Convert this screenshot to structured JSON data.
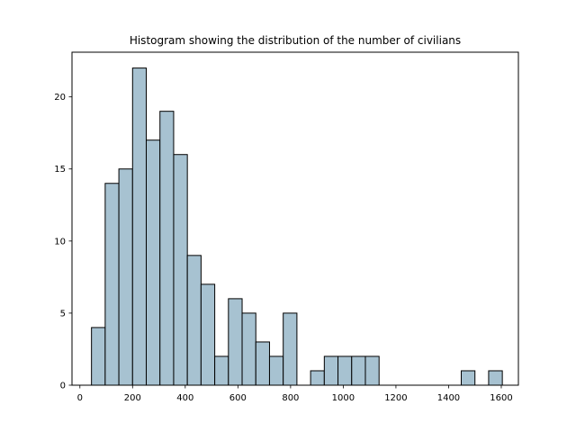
{
  "chart_data": {
    "type": "bar",
    "subtype": "histogram",
    "title": "Histogram showing the distribution of the number of civilians",
    "xlabel": "",
    "ylabel": "",
    "bin_edges": [
      44,
      96,
      148,
      200,
      252,
      304,
      356,
      408,
      460,
      512,
      564,
      616,
      668,
      720,
      772,
      824,
      876,
      928,
      980,
      1032,
      1084,
      1136,
      1188,
      1240,
      1292,
      1344,
      1396,
      1448,
      1500,
      1552,
      1604
    ],
    "values": [
      4,
      14,
      15,
      22,
      17,
      19,
      16,
      9,
      7,
      2,
      6,
      5,
      3,
      2,
      5,
      0,
      1,
      2,
      2,
      2,
      2,
      0,
      0,
      0,
      0,
      0,
      0,
      1,
      0,
      1
    ],
    "xlim": [
      -30,
      1665
    ],
    "ylim": [
      0,
      23.1
    ],
    "xticks": [
      0,
      200,
      400,
      600,
      800,
      1000,
      1200,
      1400,
      1600
    ],
    "xtick_labels": [
      "0",
      "200",
      "400",
      "600",
      "800",
      "1000",
      "1200",
      "1400",
      "1600"
    ],
    "yticks": [
      0,
      5,
      10,
      15,
      20
    ],
    "ytick_labels": [
      "0",
      "5",
      "10",
      "15",
      "20"
    ],
    "grid": false,
    "legend": "none",
    "colors": {
      "bar_fill": "#a7c2d1",
      "bar_edge": "#000000",
      "axes": "#000000",
      "background": "#ffffff"
    }
  }
}
